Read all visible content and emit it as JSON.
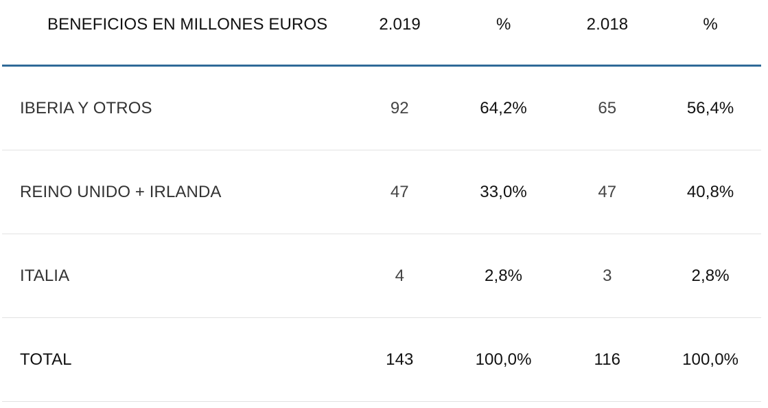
{
  "table": {
    "header": {
      "label": "BENEFICIOS EN MILLONES EUROS",
      "year1": "2.019",
      "pct1": "%",
      "year2": "2.018",
      "pct2": "%"
    },
    "rows": [
      {
        "region": "IBERIA Y OTROS",
        "v2019": "92",
        "p2019": "64,2%",
        "v2018": "65",
        "p2018": "56,4%"
      },
      {
        "region": "REINO UNIDO + IRLANDA",
        "v2019": "47",
        "p2019": "33,0%",
        "v2018": "47",
        "p2018": "40,8%"
      },
      {
        "region": "ITALIA",
        "v2019": "4",
        "p2019": "2,8%",
        "v2018": "3",
        "p2018": "2,8%"
      }
    ],
    "total": {
      "region": "TOTAL",
      "v2019": "143",
      "p2019": "100,0%",
      "v2018": "116",
      "p2018": "100,0%"
    }
  },
  "colors": {
    "header_rule": "#2f6a98",
    "row_divider": "#e2e2e2"
  }
}
